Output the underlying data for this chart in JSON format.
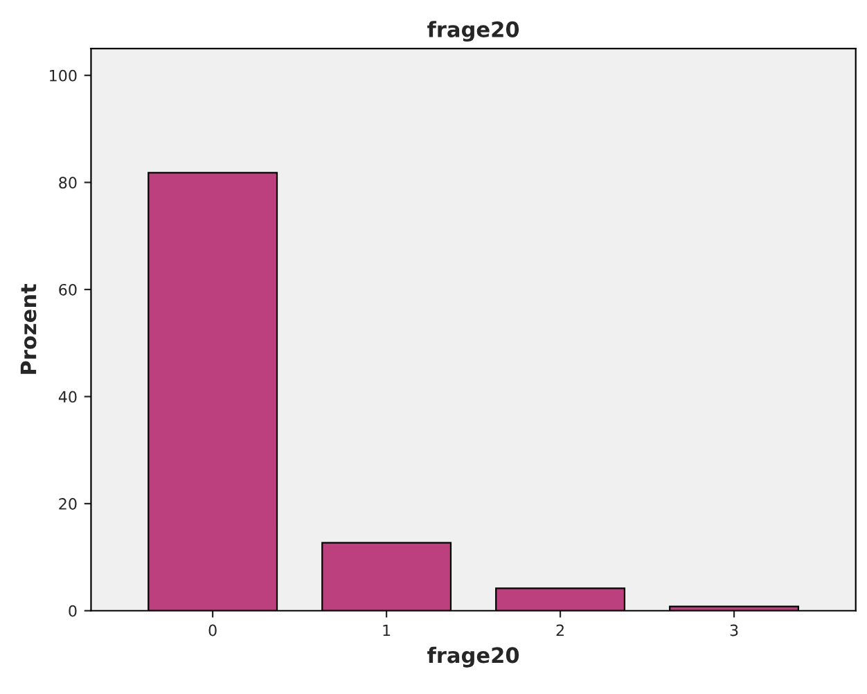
{
  "chart_data": {
    "type": "bar",
    "title": "frage20",
    "xlabel": "frage20",
    "ylabel": "Prozent",
    "categories": [
      "0",
      "1",
      "2",
      "3"
    ],
    "values": [
      81.8,
      12.7,
      4.2,
      0.8
    ],
    "color": "#bc3f7e",
    "ylim": [
      0,
      105
    ],
    "yticks": [
      0,
      20,
      40,
      60,
      80,
      100
    ],
    "grid": false,
    "legend": false
  }
}
